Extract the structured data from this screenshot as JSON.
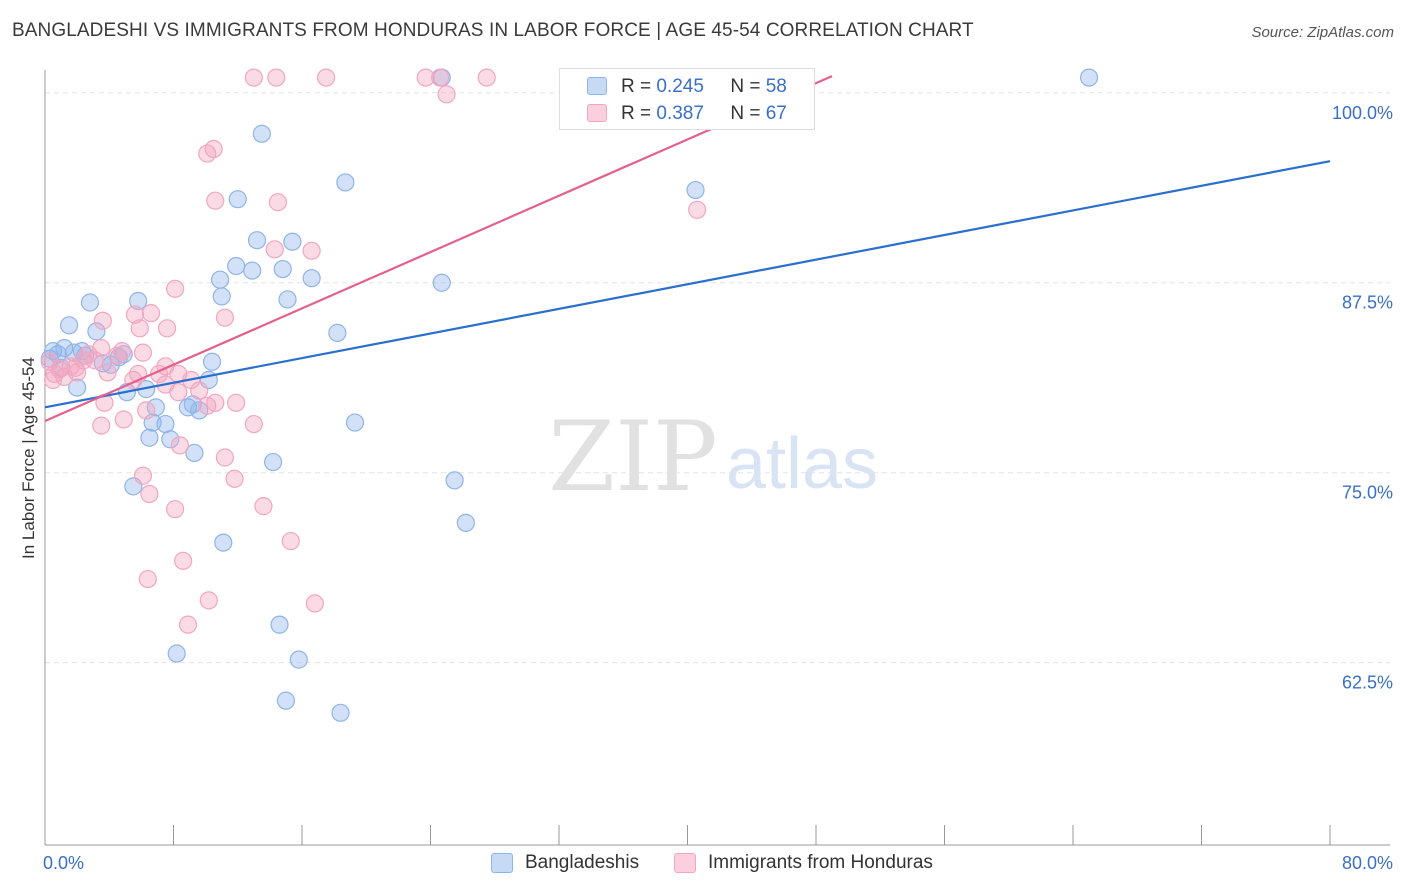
{
  "title": "BANGLADESHI VS IMMIGRANTS FROM HONDURAS IN LABOR FORCE | AGE 45-54 CORRELATION CHART",
  "source": "Source: ZipAtlas.com",
  "watermark": {
    "zip": "ZIP",
    "atlas": "atlas"
  },
  "legend": {
    "r_label": "R =",
    "n_label": "N =",
    "items": [
      {
        "name": "Bangladeshis",
        "r": "0.245",
        "n": "58"
      },
      {
        "name": "Immigrants from Honduras",
        "r": "0.387",
        "n": "67"
      }
    ]
  },
  "chart_data": {
    "type": "scatter",
    "title": "BANGLADESHI VS IMMIGRANTS FROM HONDURAS IN LABOR FORCE | AGE 45-54 CORRELATION CHART",
    "xlabel": "",
    "ylabel": "In Labor Force | Age 45-54",
    "xlim": [
      0,
      80
    ],
    "ylim": [
      50.5,
      101.5
    ],
    "x_tick_labels": [
      "0.0%",
      "80.0%"
    ],
    "y_ticks": [
      62.5,
      75.0,
      87.5,
      100.0
    ],
    "y_tick_labels": [
      "62.5%",
      "75.0%",
      "87.5%",
      "100.0%"
    ],
    "grid": true,
    "series": [
      {
        "name": "Bangladeshis",
        "color": "#8fb4ea",
        "line_color": "#2a6fd0",
        "trend": {
          "x": [
            0,
            80
          ],
          "y": [
            79.3,
            95.5
          ]
        },
        "points": [
          [
            0.5,
            83.0
          ],
          [
            0.8,
            82.8
          ],
          [
            1.2,
            83.2
          ],
          [
            1.8,
            82.9
          ],
          [
            2.5,
            82.7
          ],
          [
            1.5,
            84.7
          ],
          [
            3.2,
            84.3
          ],
          [
            2.8,
            86.2
          ],
          [
            5.8,
            86.3
          ],
          [
            2.0,
            80.6
          ],
          [
            4.6,
            82.6
          ],
          [
            4.1,
            82.1
          ],
          [
            5.1,
            80.3
          ],
          [
            4.9,
            82.8
          ],
          [
            6.3,
            80.5
          ],
          [
            6.9,
            79.3
          ],
          [
            7.5,
            78.2
          ],
          [
            6.7,
            78.3
          ],
          [
            6.5,
            77.3
          ],
          [
            7.8,
            77.2
          ],
          [
            8.9,
            79.3
          ],
          [
            9.2,
            79.5
          ],
          [
            9.6,
            79.1
          ],
          [
            10.2,
            81.1
          ],
          [
            10.4,
            82.3
          ],
          [
            9.3,
            76.3
          ],
          [
            5.5,
            74.1
          ],
          [
            8.2,
            63.1
          ],
          [
            11.0,
            86.6
          ],
          [
            10.9,
            87.7
          ],
          [
            11.9,
            88.6
          ],
          [
            12.9,
            88.3
          ],
          [
            13.2,
            90.3
          ],
          [
            14.8,
            88.4
          ],
          [
            15.4,
            90.2
          ],
          [
            16.6,
            87.8
          ],
          [
            15.1,
            86.4
          ],
          [
            11.1,
            70.4
          ],
          [
            14.2,
            75.7
          ],
          [
            14.6,
            65.0
          ],
          [
            15.8,
            62.7
          ],
          [
            12.0,
            93.0
          ],
          [
            13.5,
            97.3
          ],
          [
            18.7,
            94.1
          ],
          [
            18.2,
            84.2
          ],
          [
            19.3,
            78.3
          ],
          [
            15.0,
            60.0
          ],
          [
            18.4,
            59.2
          ],
          [
            24.7,
            87.5
          ],
          [
            25.5,
            74.5
          ],
          [
            26.2,
            71.7
          ],
          [
            24.7,
            101.0
          ],
          [
            40.5,
            93.6
          ],
          [
            65.0,
            101.0
          ],
          [
            0.3,
            82.5
          ],
          [
            1.0,
            81.9
          ],
          [
            3.6,
            82.2
          ],
          [
            2.3,
            83.0
          ]
        ]
      },
      {
        "name": "Immigrants from Honduras",
        "color": "#f3a6bf",
        "line_color": "#e4608e",
        "trend": {
          "x": [
            0,
            49
          ],
          "y": [
            78.4,
            101.1
          ]
        },
        "points": [
          [
            0.3,
            82.3
          ],
          [
            0.6,
            81.5
          ],
          [
            0.9,
            81.8
          ],
          [
            1.2,
            81.3
          ],
          [
            1.6,
            82.0
          ],
          [
            2.0,
            81.6
          ],
          [
            2.4,
            82.4
          ],
          [
            0.5,
            81.1
          ],
          [
            1.9,
            81.9
          ],
          [
            2.7,
            82.8
          ],
          [
            3.5,
            83.2
          ],
          [
            3.1,
            82.4
          ],
          [
            3.6,
            85.0
          ],
          [
            3.9,
            81.6
          ],
          [
            4.5,
            82.7
          ],
          [
            4.8,
            83.0
          ],
          [
            5.5,
            81.1
          ],
          [
            5.8,
            81.5
          ],
          [
            6.1,
            82.9
          ],
          [
            6.6,
            85.5
          ],
          [
            5.6,
            85.4
          ],
          [
            7.6,
            84.5
          ],
          [
            5.9,
            84.5
          ],
          [
            6.3,
            79.1
          ],
          [
            7.5,
            82.0
          ],
          [
            7.1,
            81.5
          ],
          [
            7.5,
            80.8
          ],
          [
            8.3,
            81.5
          ],
          [
            8.3,
            80.3
          ],
          [
            3.5,
            78.1
          ],
          [
            3.7,
            79.6
          ],
          [
            4.9,
            78.5
          ],
          [
            6.1,
            74.8
          ],
          [
            6.5,
            73.6
          ],
          [
            8.1,
            72.6
          ],
          [
            8.4,
            76.8
          ],
          [
            8.6,
            69.2
          ],
          [
            6.4,
            68.0
          ],
          [
            8.9,
            65.0
          ],
          [
            10.2,
            66.6
          ],
          [
            9.1,
            81.1
          ],
          [
            9.6,
            80.4
          ],
          [
            10.1,
            79.4
          ],
          [
            10.6,
            79.6
          ],
          [
            11.2,
            76.0
          ],
          [
            11.8,
            74.6
          ],
          [
            11.2,
            85.2
          ],
          [
            8.1,
            87.1
          ],
          [
            10.1,
            96.0
          ],
          [
            10.5,
            96.3
          ],
          [
            10.6,
            92.9
          ],
          [
            13.0,
            78.2
          ],
          [
            13.6,
            72.8
          ],
          [
            15.3,
            70.5
          ],
          [
            16.8,
            66.4
          ],
          [
            16.6,
            89.6
          ],
          [
            14.3,
            89.7
          ],
          [
            14.5,
            92.8
          ],
          [
            13.0,
            101.0
          ],
          [
            14.4,
            101.0
          ],
          [
            17.5,
            101.0
          ],
          [
            23.7,
            101.0
          ],
          [
            24.6,
            101.0
          ],
          [
            27.5,
            101.0
          ],
          [
            25.0,
            99.9
          ],
          [
            40.6,
            92.3
          ],
          [
            11.9,
            79.6
          ]
        ]
      }
    ]
  },
  "colors": {
    "grid": "#e3e3e3",
    "axis": "#999999",
    "tick_text": "#3a6fc8"
  }
}
